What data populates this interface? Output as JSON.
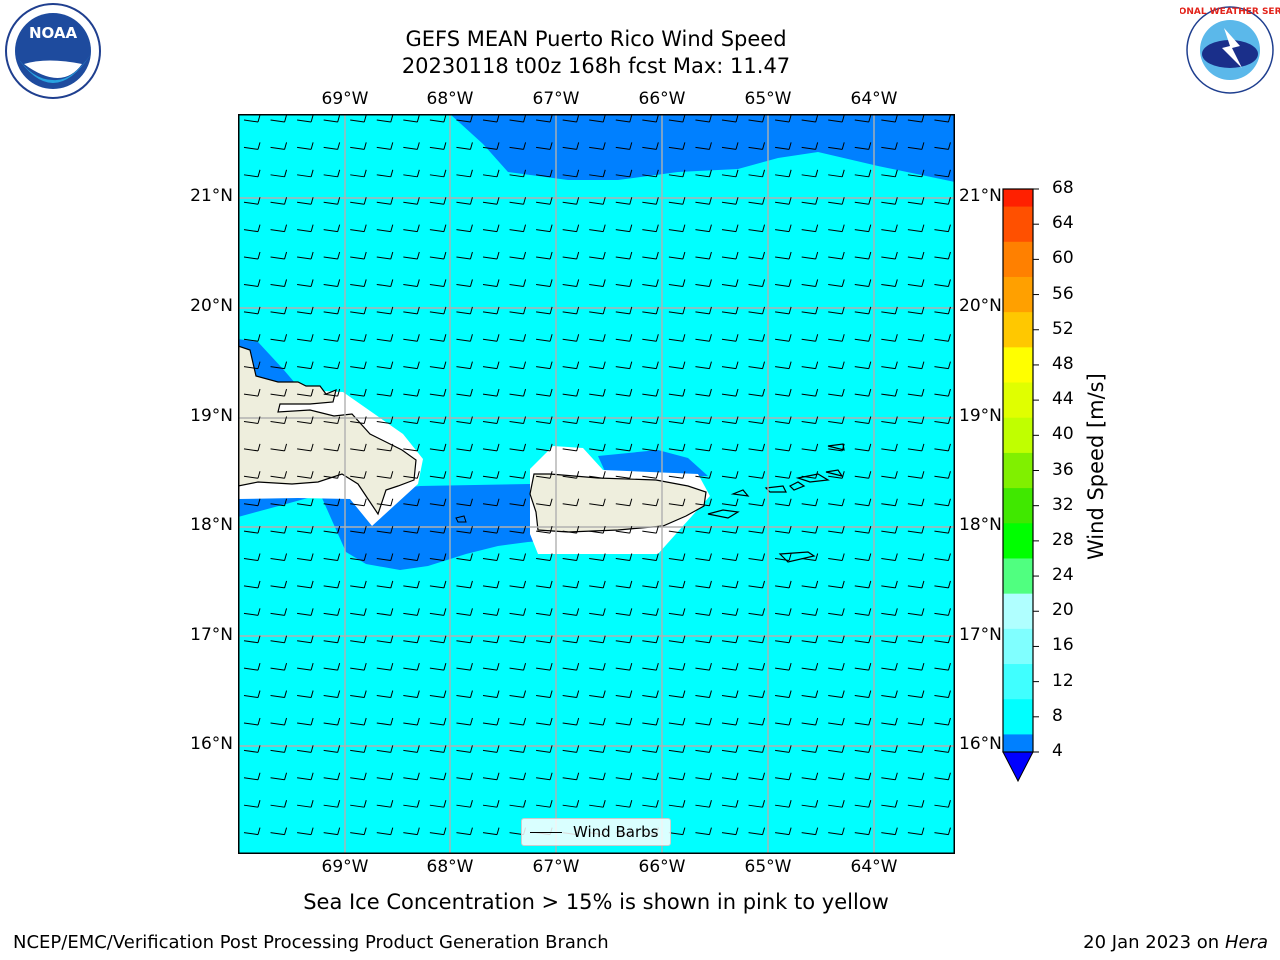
{
  "header": {
    "title": "GEFS MEAN Puerto Rico Wind Speed",
    "subtitle": "20230118 t00z 168h fcst   Max: 11.47",
    "noaa_logo_text": "NOAA",
    "nws_logo_text": "NATIONAL WEATHER SERVICE"
  },
  "map": {
    "lon_labels": [
      "69°W",
      "68°W",
      "67°W",
      "66°W",
      "65°W",
      "64°W"
    ],
    "lat_labels": [
      "21°N",
      "20°N",
      "19°N",
      "18°N",
      "17°N",
      "16°N"
    ],
    "legend_label": "Wind Barbs",
    "base_color": "#00ffff",
    "shade_color": "#0080ff",
    "land_color": "#eeeedd"
  },
  "colorbar": {
    "label": "Wind Speed [m/s]",
    "ticks": [
      "4",
      "8",
      "12",
      "16",
      "20",
      "24",
      "28",
      "32",
      "36",
      "40",
      "44",
      "48",
      "52",
      "56",
      "60",
      "64",
      "68"
    ],
    "colors": [
      "#0080ff",
      "#00ffff",
      "#40ffff",
      "#80ffff",
      "#b0ffff",
      "#50ff80",
      "#00ff00",
      "#40e800",
      "#80f000",
      "#c0ff00",
      "#e0ff00",
      "#ffff00",
      "#ffc800",
      "#ffa000",
      "#ff8000",
      "#ff5000",
      "#ff2000",
      "#ff0000"
    ],
    "under_color": "#0000ff"
  },
  "note": "Sea Ice Concentration > 15% is shown in pink to yellow",
  "footer": {
    "left": "NCEP/EMC/Verification Post Processing Product Generation Branch",
    "right_date": "20 Jan 2023 on ",
    "right_machine": "Hera"
  }
}
